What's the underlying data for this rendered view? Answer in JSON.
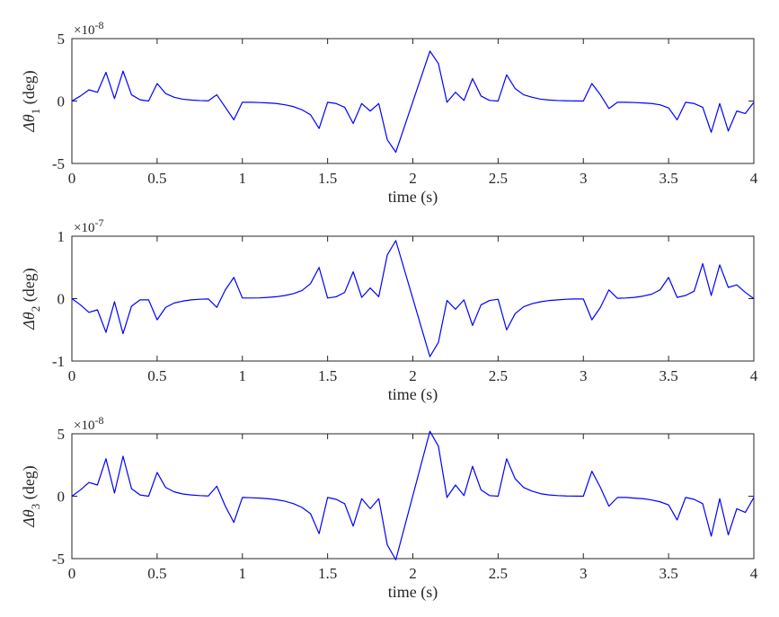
{
  "chart_data": [
    {
      "type": "line",
      "xlabel": "time (s)",
      "ylabel": "Δθ",
      "ylabel_sub": "1",
      "ylabel_unit": " (deg)",
      "exponent_prefix": "×10",
      "exponent": "-8",
      "xlim": [
        0,
        4
      ],
      "ylim": [
        -5,
        5
      ],
      "xticks": [
        0,
        0.5,
        1,
        1.5,
        2,
        2.5,
        3,
        3.5,
        4
      ],
      "yticks": [
        -5,
        0,
        5
      ],
      "grid": false,
      "line_color": "#0000ff",
      "series": [
        {
          "x": [
            0,
            0.05,
            0.1,
            0.15,
            0.2,
            0.25,
            0.3,
            0.35,
            0.4,
            0.45,
            0.5,
            0.55,
            0.6,
            0.65,
            0.7,
            0.75,
            0.8,
            0.85,
            0.9,
            0.95,
            1.0,
            1.05,
            1.1,
            1.15,
            1.2,
            1.25,
            1.3,
            1.35,
            1.4,
            1.45,
            1.5,
            1.55,
            1.6,
            1.65,
            1.7,
            1.75,
            1.8,
            1.85,
            1.9,
            2.1,
            2.15,
            2.2,
            2.25,
            2.3,
            2.35,
            2.4,
            2.45,
            2.5,
            2.55,
            2.6,
            2.65,
            2.7,
            2.75,
            2.8,
            2.85,
            2.9,
            2.95,
            3.0,
            3.05,
            3.1,
            3.15,
            3.2,
            3.25,
            3.3,
            3.35,
            3.4,
            3.45,
            3.5,
            3.55,
            3.6,
            3.65,
            3.7,
            3.75,
            3.8,
            3.85,
            3.9,
            3.95,
            4.0
          ],
          "y": [
            0,
            0.4,
            0.9,
            0.7,
            2.3,
            0.2,
            2.4,
            0.5,
            0.1,
            0,
            1.4,
            0.6,
            0.3,
            0.15,
            0.08,
            0.04,
            0.02,
            0.5,
            -0.5,
            -1.5,
            -0.1,
            -0.1,
            -0.12,
            -0.15,
            -0.2,
            -0.3,
            -0.45,
            -0.7,
            -1.1,
            -2.2,
            -0.1,
            -0.2,
            -0.5,
            -1.8,
            -0.2,
            -0.8,
            -0.2,
            -3.1,
            -4.1,
            4.0,
            3.0,
            -0.1,
            0.7,
            0.05,
            1.8,
            0.4,
            0.05,
            0,
            2.1,
            1.0,
            0.5,
            0.3,
            0.15,
            0.08,
            0.04,
            0.02,
            0.01,
            0,
            1.4,
            0.5,
            -0.6,
            -0.1,
            -0.1,
            -0.12,
            -0.15,
            -0.2,
            -0.3,
            -0.55,
            -1.5,
            -0.1,
            -0.2,
            -0.5,
            -2.5,
            -0.2,
            -2.4,
            -0.8,
            -1.0,
            -0.1
          ]
        }
      ]
    },
    {
      "type": "line",
      "xlabel": "time (s)",
      "ylabel": "Δθ",
      "ylabel_sub": "2",
      "ylabel_unit": " (deg)",
      "exponent_prefix": "×10",
      "exponent": "-7",
      "xlim": [
        0,
        4
      ],
      "ylim": [
        -1,
        1
      ],
      "xticks": [
        0,
        0.5,
        1,
        1.5,
        2,
        2.5,
        3,
        3.5,
        4
      ],
      "yticks": [
        -1,
        0,
        1
      ],
      "grid": false,
      "line_color": "#0000ff",
      "series": [
        {
          "x": [
            0,
            0.05,
            0.1,
            0.15,
            0.2,
            0.25,
            0.3,
            0.35,
            0.4,
            0.45,
            0.5,
            0.55,
            0.6,
            0.65,
            0.7,
            0.75,
            0.8,
            0.85,
            0.9,
            0.95,
            1.0,
            1.05,
            1.1,
            1.15,
            1.2,
            1.25,
            1.3,
            1.35,
            1.4,
            1.45,
            1.5,
            1.55,
            1.6,
            1.65,
            1.7,
            1.75,
            1.8,
            1.85,
            1.9,
            2.1,
            2.15,
            2.2,
            2.25,
            2.3,
            2.35,
            2.4,
            2.45,
            2.5,
            2.55,
            2.6,
            2.65,
            2.7,
            2.75,
            2.8,
            2.85,
            2.9,
            2.95,
            3.0,
            3.05,
            3.1,
            3.15,
            3.2,
            3.25,
            3.3,
            3.35,
            3.4,
            3.45,
            3.5,
            3.55,
            3.6,
            3.65,
            3.7,
            3.75,
            3.8,
            3.85,
            3.9,
            3.95,
            4.0
          ],
          "y": [
            0,
            -0.1,
            -0.22,
            -0.18,
            -0.54,
            -0.05,
            -0.56,
            -0.12,
            -0.02,
            -0.02,
            -0.34,
            -0.14,
            -0.07,
            -0.04,
            -0.02,
            -0.01,
            -0.005,
            -0.14,
            0.14,
            0.34,
            0.01,
            0.01,
            0.012,
            0.02,
            0.03,
            0.05,
            0.08,
            0.13,
            0.24,
            0.5,
            0.01,
            0.03,
            0.1,
            0.43,
            0.02,
            0.17,
            0.03,
            0.7,
            0.93,
            -0.93,
            -0.7,
            -0.03,
            -0.17,
            -0.02,
            -0.43,
            -0.1,
            -0.03,
            -0.01,
            -0.5,
            -0.24,
            -0.13,
            -0.08,
            -0.05,
            -0.03,
            -0.02,
            -0.01,
            -0.005,
            -0.005,
            -0.34,
            -0.14,
            0.14,
            0.005,
            0.01,
            0.02,
            0.04,
            0.07,
            0.14,
            0.34,
            0.02,
            0.05,
            0.12,
            0.56,
            0.05,
            0.54,
            0.18,
            0.22,
            0.1,
            0
          ]
        }
      ]
    },
    {
      "type": "line",
      "xlabel": "time (s)",
      "ylabel": "Δθ",
      "ylabel_sub": "3",
      "ylabel_unit": " (deg)",
      "exponent_prefix": "×10",
      "exponent": "-8",
      "xlim": [
        0,
        4
      ],
      "ylim": [
        -5,
        5
      ],
      "xticks": [
        0,
        0.5,
        1,
        1.5,
        2,
        2.5,
        3,
        3.5,
        4
      ],
      "yticks": [
        -5,
        0,
        5
      ],
      "grid": false,
      "line_color": "#0000ff",
      "series": [
        {
          "x": [
            0,
            0.05,
            0.1,
            0.15,
            0.2,
            0.25,
            0.3,
            0.35,
            0.4,
            0.45,
            0.5,
            0.55,
            0.6,
            0.65,
            0.7,
            0.75,
            0.8,
            0.85,
            0.9,
            0.95,
            1.0,
            1.05,
            1.1,
            1.15,
            1.2,
            1.25,
            1.3,
            1.35,
            1.4,
            1.45,
            1.5,
            1.55,
            1.6,
            1.65,
            1.7,
            1.75,
            1.8,
            1.85,
            1.9,
            2.1,
            2.15,
            2.2,
            2.25,
            2.3,
            2.35,
            2.4,
            2.45,
            2.5,
            2.55,
            2.6,
            2.65,
            2.7,
            2.75,
            2.8,
            2.85,
            2.9,
            2.95,
            3.0,
            3.05,
            3.1,
            3.15,
            3.2,
            3.25,
            3.3,
            3.35,
            3.4,
            3.45,
            3.5,
            3.55,
            3.6,
            3.65,
            3.7,
            3.75,
            3.8,
            3.85,
            3.9,
            3.95,
            4.0
          ],
          "y": [
            0,
            0.5,
            1.1,
            0.9,
            3.0,
            0.25,
            3.2,
            0.6,
            0.1,
            0,
            1.9,
            0.7,
            0.35,
            0.18,
            0.1,
            0.05,
            0.02,
            0.8,
            -0.8,
            -2.1,
            -0.1,
            -0.12,
            -0.15,
            -0.2,
            -0.28,
            -0.4,
            -0.6,
            -0.9,
            -1.4,
            -3.0,
            -0.1,
            -0.25,
            -0.6,
            -2.4,
            -0.2,
            -1.0,
            -0.2,
            -3.9,
            -5.1,
            5.2,
            4.0,
            -0.1,
            0.9,
            0.05,
            2.4,
            0.5,
            0.05,
            0,
            3.0,
            1.4,
            0.7,
            0.4,
            0.2,
            0.1,
            0.05,
            0.02,
            0.01,
            0,
            2.0,
            0.7,
            -0.8,
            -0.1,
            -0.1,
            -0.15,
            -0.2,
            -0.3,
            -0.45,
            -0.7,
            -1.9,
            -0.1,
            -0.25,
            -0.6,
            -3.2,
            -0.2,
            -3.1,
            -1.0,
            -1.3,
            -0.1
          ]
        }
      ]
    }
  ]
}
